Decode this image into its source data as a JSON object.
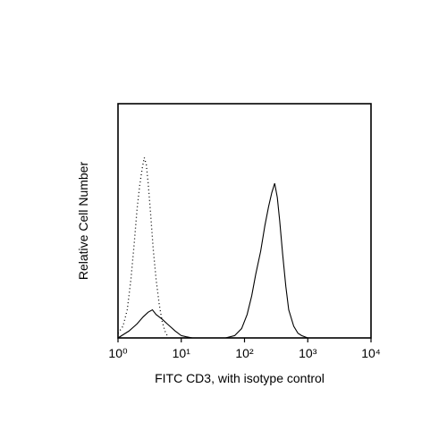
{
  "chart_data": {
    "type": "line",
    "x_label": "FITC CD3, with isotype control",
    "y_label": "Relative Cell Number",
    "xscale": "log",
    "xlim": [
      1,
      10000
    ],
    "xticks": [
      {
        "value": 1,
        "label": "10⁰"
      },
      {
        "value": 10,
        "label": "10¹"
      },
      {
        "value": 100,
        "label": "10²"
      },
      {
        "value": 1000,
        "label": "10³"
      },
      {
        "value": 10000,
        "label": "10⁴"
      }
    ],
    "ylim": [
      0,
      100
    ],
    "series": [
      {
        "color": "#000000",
        "line_style": "dotted",
        "x": [
          1,
          1.2,
          1.4,
          1.6,
          1.8,
          2,
          2.2,
          2.4,
          2.6,
          2.8,
          3,
          3.3,
          3.6,
          4,
          4.5,
          5,
          5.5,
          6
        ],
        "values": [
          2,
          5,
          12,
          25,
          40,
          55,
          65,
          72,
          77,
          74,
          66,
          52,
          38,
          25,
          14,
          7,
          3,
          1
        ]
      },
      {
        "color": "#000000",
        "line_style": "solid",
        "x": [
          1,
          1.5,
          2,
          2.5,
          3,
          3.5,
          4,
          5,
          6,
          8,
          10,
          12,
          15,
          20,
          30,
          50,
          70,
          90,
          110,
          130,
          150,
          180,
          210,
          240,
          270,
          300,
          330,
          360,
          400,
          450,
          500,
          600,
          700,
          800,
          1000
        ],
        "values": [
          0,
          3,
          6,
          9,
          11,
          12,
          10,
          8,
          6,
          3,
          1,
          0.5,
          0,
          0,
          0,
          0,
          1,
          4,
          10,
          18,
          27,
          37,
          48,
          56,
          62,
          66,
          60,
          50,
          36,
          22,
          12,
          5,
          2,
          1,
          0
        ]
      }
    ]
  }
}
